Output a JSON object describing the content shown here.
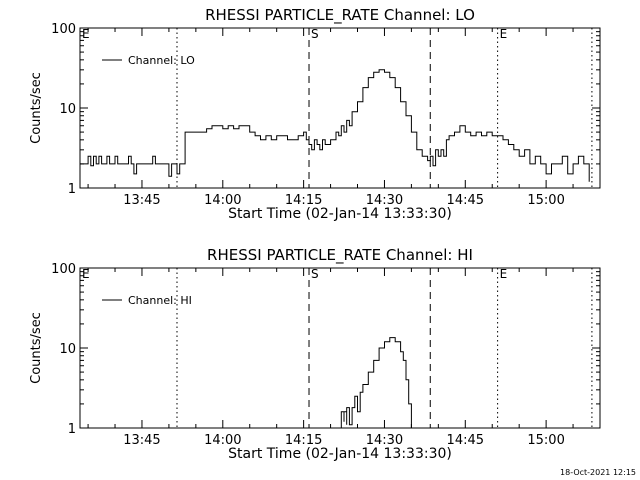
{
  "footer": {
    "timestamp": "18-Oct-2021 12:15"
  },
  "chart_data": [
    {
      "type": "line",
      "title": "RHESSI PARTICLE_RATE Channel: LO",
      "xlabel": "Start Time (02-Jan-14 13:33:30)",
      "ylabel": "Counts/sec",
      "yscale": "log",
      "ylim": [
        1,
        100
      ],
      "xlim": [
        "13:33:30",
        "15:10:00"
      ],
      "xticks": [
        "13:45",
        "14:00",
        "14:15",
        "14:30",
        "14:45",
        "15:00"
      ],
      "yticks": [
        "1",
        "10",
        "100"
      ],
      "legend": {
        "placement": "top-left"
      },
      "series": [
        {
          "name": "Channel: LO",
          "x": [
            "13:33:30",
            "13:34:30",
            "13:35:00",
            "13:35:30",
            "13:36:00",
            "13:36:30",
            "13:37:00",
            "13:37:30",
            "13:38:00",
            "13:38:30",
            "13:39:00",
            "13:39:30",
            "13:40:00",
            "13:40:30",
            "13:41:00",
            "13:41:30",
            "13:42:00",
            "13:42:30",
            "13:43:00",
            "13:43:30",
            "13:44:00",
            "13:44:30",
            "13:45:00",
            "13:46:00",
            "13:47:00",
            "13:47:30",
            "13:48:00",
            "13:48:30",
            "13:49:00",
            "13:50:00",
            "13:50:30",
            "13:51:00",
            "13:51:30",
            "13:52:00",
            "13:52:30",
            "13:53:00",
            "13:55:00",
            "13:57:00",
            "13:58:00",
            "13:59:00",
            "14:00:00",
            "14:01:00",
            "14:02:00",
            "14:03:00",
            "14:04:00",
            "14:05:00",
            "14:06:00",
            "14:07:00",
            "14:08:00",
            "14:09:00",
            "14:10:00",
            "14:12:00",
            "14:14:00",
            "14:15:00",
            "14:15:30",
            "14:16:00",
            "14:16:30",
            "14:17:00",
            "14:17:30",
            "14:18:00",
            "14:18:30",
            "14:19:00",
            "14:20:00",
            "14:21:00",
            "14:21:30",
            "14:22:00",
            "14:22:30",
            "14:23:00",
            "14:23:30",
            "14:24:00",
            "14:25:00",
            "14:26:00",
            "14:27:00",
            "14:28:00",
            "14:29:00",
            "14:30:00",
            "14:31:00",
            "14:32:00",
            "14:33:00",
            "14:34:00",
            "14:35:00",
            "14:36:00",
            "14:37:00",
            "14:38:00",
            "14:38:30",
            "14:39:00",
            "14:39:30",
            "14:40:00",
            "14:40:30",
            "14:41:00",
            "14:41:30",
            "14:42:00",
            "14:43:00",
            "14:44:00",
            "14:45:00",
            "14:46:00",
            "14:47:00",
            "14:48:00",
            "14:49:00",
            "14:50:00",
            "14:51:00",
            "14:52:00",
            "14:53:00",
            "14:54:00",
            "14:55:00",
            "14:56:00",
            "14:57:00",
            "14:58:00",
            "14:59:00",
            "15:00:00",
            "15:01:00",
            "15:02:00",
            "15:03:00",
            "15:04:00",
            "15:05:00",
            "15:06:00",
            "15:07:00",
            "15:08:00"
          ],
          "y": [
            2,
            2,
            2.5,
            1.9,
            2.5,
            2,
            2.5,
            2,
            2,
            2.5,
            2,
            2,
            2.5,
            2,
            2,
            2,
            2,
            2.5,
            2,
            1.5,
            2,
            2,
            2,
            2,
            2.5,
            2,
            2,
            2,
            2,
            1.4,
            2,
            2,
            1.5,
            2,
            2,
            5,
            5,
            5.5,
            6,
            6,
            5.5,
            6,
            5.5,
            6,
            6,
            5,
            4.5,
            4,
            4.5,
            4,
            4.5,
            4,
            4.5,
            5,
            4,
            3.5,
            3,
            4,
            3.5,
            3,
            4,
            3.5,
            4,
            5,
            4.5,
            6,
            5,
            7,
            6,
            9,
            12,
            18,
            24,
            28,
            30,
            28,
            24,
            18,
            12,
            8,
            5,
            3,
            2.5,
            2.2,
            2.5,
            1.9,
            3,
            2.5,
            3,
            2.5,
            4,
            4.5,
            5,
            6,
            5,
            4.5,
            5,
            4.5,
            5,
            4.5,
            4.5,
            4,
            3.5,
            3,
            2.5,
            3,
            2,
            2.5,
            2,
            1.5,
            2,
            2,
            2.5,
            1.5,
            2,
            2.5,
            2,
            1.2
          ]
        }
      ],
      "markers": [
        {
          "label": "E",
          "time": "13:33:30",
          "style": "dotted"
        },
        {
          "label": "",
          "time": "13:51:30",
          "style": "dotted"
        },
        {
          "label": "S",
          "time": "14:16:00",
          "style": "dashed"
        },
        {
          "label": "",
          "time": "14:38:30",
          "style": "dashed"
        },
        {
          "label": "E",
          "time": "14:51:00",
          "style": "dotted"
        },
        {
          "label": "",
          "time": "15:08:30",
          "style": "dotted"
        }
      ]
    },
    {
      "type": "line",
      "title": "RHESSI PARTICLE_RATE Channel: HI",
      "xlabel": "Start Time (02-Jan-14 13:33:30)",
      "ylabel": "Counts/sec",
      "yscale": "log",
      "ylim": [
        1,
        100
      ],
      "xlim": [
        "13:33:30",
        "15:10:00"
      ],
      "xticks": [
        "13:45",
        "14:00",
        "14:15",
        "14:30",
        "14:45",
        "15:00"
      ],
      "yticks": [
        "1",
        "10",
        "100"
      ],
      "legend": {
        "placement": "top-left"
      },
      "series": [
        {
          "name": "Channel: HI",
          "x": [
            "14:22:00",
            "14:22:00",
            "14:22:30",
            "14:22:30",
            "14:23:00",
            "14:23:00",
            "14:23:30",
            "14:24:00",
            "14:24:30",
            "14:25:00",
            "14:25:30",
            "14:26:00",
            "14:27:00",
            "14:28:00",
            "14:29:00",
            "14:30:00",
            "14:31:00",
            "14:32:00",
            "14:33:00",
            "14:33:30",
            "14:34:00",
            "14:34:30",
            "14:35:00"
          ],
          "y": [
            0.95,
            1.6,
            1.2,
            1.6,
            1.1,
            1.8,
            1.1,
            1.8,
            2.5,
            1.6,
            2.8,
            3.5,
            5,
            7,
            10,
            12,
            13.5,
            12,
            9,
            7,
            4,
            2,
            0.95
          ]
        }
      ],
      "markers": [
        {
          "label": "E",
          "time": "13:33:30",
          "style": "dotted"
        },
        {
          "label": "",
          "time": "13:51:30",
          "style": "dotted"
        },
        {
          "label": "S",
          "time": "14:16:00",
          "style": "dashed"
        },
        {
          "label": "",
          "time": "14:38:30",
          "style": "dashed"
        },
        {
          "label": "E",
          "time": "14:51:00",
          "style": "dotted"
        },
        {
          "label": "",
          "time": "15:08:30",
          "style": "dotted"
        }
      ]
    }
  ]
}
